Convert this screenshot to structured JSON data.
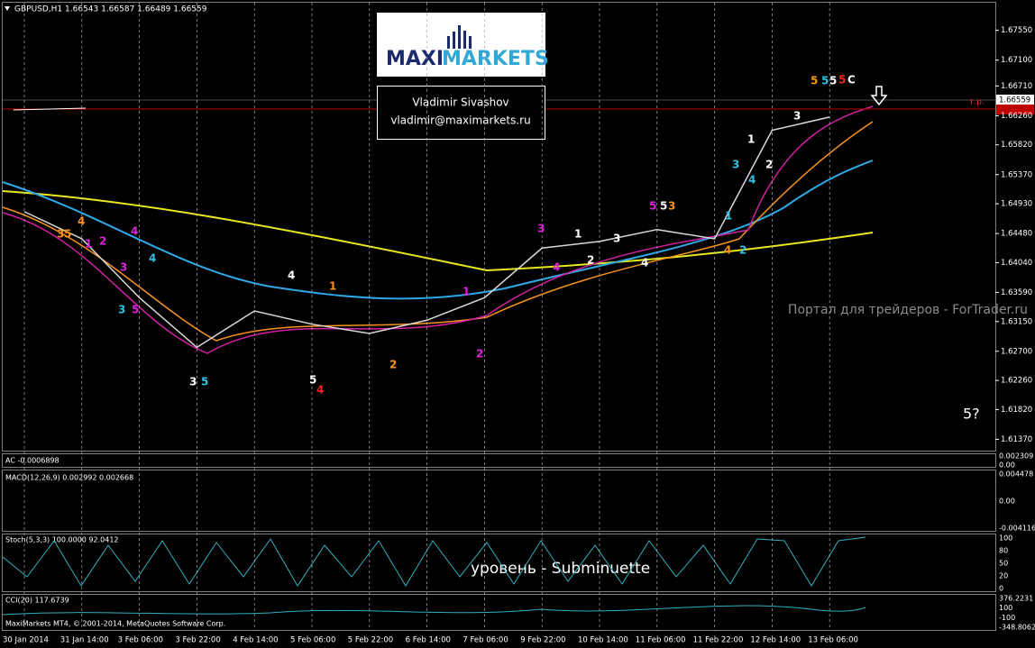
{
  "window": {
    "symbol_info": "GBPUSD,H1  1.66543 1.66587 1.66489 1.66559"
  },
  "logo": {
    "brand_maxi": "MAXI",
    "brand_markets": "MARKETS",
    "author": "Vladimir Sivashov",
    "email": "vladimir@maximarkets.ru"
  },
  "watermark": "Портал для трейдеров - ForTrader.ru",
  "annotation": "5?",
  "level_note": "уровень - Subminuette",
  "tp_label": "т.р.",
  "price_tag": "1.66559",
  "copyright": "MaxiMarkets MT4, © 2001-2014, MetaQuotes Software Corp.",
  "chart_data": {
    "type": "line",
    "categories": [
      "30 Jan 2014",
      "31 Jan 14:00",
      "3 Feb 06:00",
      "3 Feb 22:00",
      "4 Feb 14:00",
      "5 Feb 06:00",
      "5 Feb 22:00",
      "6 Feb 14:00",
      "7 Feb 06:00",
      "9 Feb 22:00",
      "10 Feb 14:00",
      "11 Feb 06:00",
      "11 Feb 22:00",
      "12 Feb 14:00",
      "13 Feb 06:00"
    ],
    "series": [
      {
        "name": "GBPUSD,H1",
        "color": "#d8d8d8",
        "values": [
          1.6481,
          1.644,
          1.6351,
          1.6276,
          1.6331,
          1.6311,
          1.6297,
          1.6317,
          1.6351,
          1.6426,
          1.6436,
          1.6454,
          1.644,
          1.6604,
          1.6624
        ]
      }
    ],
    "ylim": [
      1.6124,
      1.679
    ],
    "yticks": [
      {
        "value": 1.6755,
        "label": "1.67550"
      },
      {
        "value": 1.671,
        "label": "1.67100"
      },
      {
        "value": 1.6671,
        "label": "1.66710"
      },
      {
        "value": 1.6626,
        "label": "1.66260"
      },
      {
        "value": 1.6582,
        "label": "1.65820"
      },
      {
        "value": 1.6537,
        "label": "1.65370"
      },
      {
        "value": 1.6493,
        "label": "1.64930"
      },
      {
        "value": 1.6448,
        "label": "1.64480"
      },
      {
        "value": 1.6404,
        "label": "1.64040"
      },
      {
        "value": 1.6359,
        "label": "1.63590"
      },
      {
        "value": 1.6315,
        "label": "1.63150"
      },
      {
        "value": 1.627,
        "label": "1.62700"
      },
      {
        "value": 1.6226,
        "label": "1.62260"
      },
      {
        "value": 1.6182,
        "label": "1.61820"
      },
      {
        "value": 1.6137,
        "label": "1.61370"
      }
    ],
    "grid": true
  },
  "indicators": {
    "ac": {
      "label": "AC -0.0006898",
      "ticks": [
        "0.002309",
        "0.00"
      ]
    },
    "macd": {
      "label": "MACD(12,26,9) 0.002992 0.002668",
      "ticks": [
        "0.004478",
        "0.00",
        "-0.004116"
      ]
    },
    "stoch": {
      "label": "Stoch(5,3,3) 100.0000 92.0412",
      "ticks": [
        "100",
        "80",
        "50",
        "20",
        "0"
      ]
    },
    "cci": {
      "label": "CCI(20) 117.6739",
      "ticks": [
        "376.2231",
        "100",
        "-100",
        "-348.8062"
      ]
    }
  },
  "wave_labels": [
    {
      "text": "3",
      "color": "#f7931e"
    },
    {
      "text": "5",
      "color": "#f7931e"
    },
    {
      "text": "4",
      "color": "#f7931e"
    },
    {
      "text": "1",
      "color": "#e020e0"
    },
    {
      "text": "2",
      "color": "#e020e0"
    },
    {
      "text": "4",
      "color": "#e020e0"
    },
    {
      "text": "3",
      "color": "#e020e0"
    },
    {
      "text": "4",
      "color": "#30c0e0"
    },
    {
      "text": "3",
      "color": "#30c0e0"
    },
    {
      "text": "5",
      "color": "#e020e0"
    },
    {
      "text": "3",
      "color": "#ffffff"
    },
    {
      "text": "5",
      "color": "#30c0e0"
    },
    {
      "text": "4",
      "color": "#ffffff"
    },
    {
      "text": "1",
      "color": "#f7931e"
    },
    {
      "text": "5",
      "color": "#ffffff"
    },
    {
      "text": "4",
      "color": "#ff2020"
    },
    {
      "text": "2",
      "color": "#f7931e"
    },
    {
      "text": "1",
      "color": "#e020e0"
    },
    {
      "text": "2",
      "color": "#e020e0"
    },
    {
      "text": "3",
      "color": "#e020e0"
    },
    {
      "text": "4",
      "color": "#e020e0"
    },
    {
      "text": "1",
      "color": "#ffffff"
    },
    {
      "text": "2",
      "color": "#ffffff"
    },
    {
      "text": "3",
      "color": "#ffffff"
    },
    {
      "text": "4",
      "color": "#ffffff"
    },
    {
      "text": "5",
      "color": "#e020e0"
    },
    {
      "text": "5",
      "color": "#ffffff"
    },
    {
      "text": "3",
      "color": "#f7931e"
    },
    {
      "text": "1",
      "color": "#30c0e0"
    },
    {
      "text": "2",
      "color": "#30c0e0"
    },
    {
      "text": "4",
      "color": "#f7931e"
    },
    {
      "text": "3",
      "color": "#30c0e0"
    },
    {
      "text": "4",
      "color": "#30c0e0"
    },
    {
      "text": "1",
      "color": "#ffffff"
    },
    {
      "text": "2",
      "color": "#ffffff"
    },
    {
      "text": "3",
      "color": "#ffffff"
    },
    {
      "text": "5",
      "color": "#f7931e"
    },
    {
      "text": "5",
      "color": "#30c0e0"
    },
    {
      "text": "5",
      "color": "#ffffff"
    },
    {
      "text": "5",
      "color": "#ff2020"
    },
    {
      "text": "C",
      "color": "#ffffff"
    }
  ]
}
